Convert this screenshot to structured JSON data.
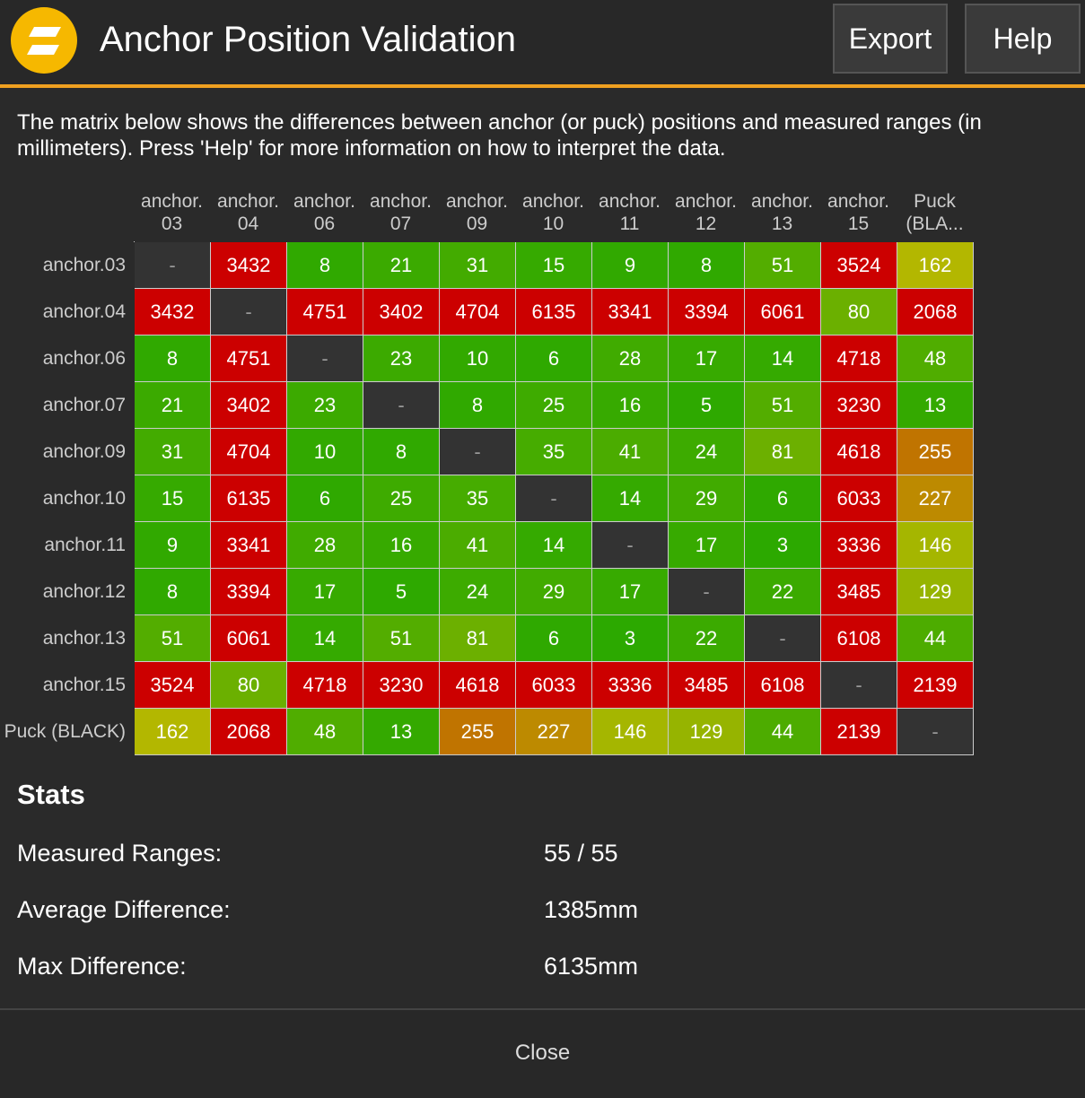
{
  "header": {
    "title": "Anchor Position Validation",
    "export_label": "Export",
    "help_label": "Help",
    "logo_color": "#f6b800",
    "accent": "#f0a020"
  },
  "description": "The matrix below shows the differences between anchor (or puck) positions and measured ranges (in millimeters). Press 'Help' for more information on how to interpret the data.",
  "matrix": {
    "col_headers": [
      [
        "anchor.",
        "03"
      ],
      [
        "anchor.",
        "04"
      ],
      [
        "anchor.",
        "06"
      ],
      [
        "anchor.",
        "07"
      ],
      [
        "anchor.",
        "09"
      ],
      [
        "anchor.",
        "10"
      ],
      [
        "anchor.",
        "11"
      ],
      [
        "anchor.",
        "12"
      ],
      [
        "anchor.",
        "13"
      ],
      [
        "anchor.",
        "15"
      ],
      [
        "Puck",
        "(BLA..."
      ]
    ],
    "row_headers": [
      "anchor.03",
      "anchor.04",
      "anchor.06",
      "anchor.07",
      "anchor.09",
      "anchor.10",
      "anchor.11",
      "anchor.12",
      "anchor.13",
      "anchor.15",
      "Puck (BLACK)"
    ],
    "rows": [
      [
        "-",
        "3432",
        "8",
        "21",
        "31",
        "15",
        "9",
        "8",
        "51",
        "3524",
        "162"
      ],
      [
        "3432",
        "-",
        "4751",
        "3402",
        "4704",
        "6135",
        "3341",
        "3394",
        "6061",
        "80",
        "2068"
      ],
      [
        "8",
        "4751",
        "-",
        "23",
        "10",
        "6",
        "28",
        "17",
        "14",
        "4718",
        "48"
      ],
      [
        "21",
        "3402",
        "23",
        "-",
        "8",
        "25",
        "16",
        "5",
        "51",
        "3230",
        "13"
      ],
      [
        "31",
        "4704",
        "10",
        "8",
        "-",
        "35",
        "41",
        "24",
        "81",
        "4618",
        "255"
      ],
      [
        "15",
        "6135",
        "6",
        "25",
        "35",
        "-",
        "14",
        "29",
        "6",
        "6033",
        "227"
      ],
      [
        "9",
        "3341",
        "28",
        "16",
        "41",
        "14",
        "-",
        "17",
        "3",
        "3336",
        "146"
      ],
      [
        "8",
        "3394",
        "17",
        "5",
        "24",
        "29",
        "17",
        "-",
        "22",
        "3485",
        "129"
      ],
      [
        "51",
        "6061",
        "14",
        "51",
        "81",
        "6",
        "3",
        "22",
        "-",
        "6108",
        "44"
      ],
      [
        "3524",
        "80",
        "4718",
        "3230",
        "4618",
        "6033",
        "3336",
        "3485",
        "6108",
        "-",
        "2139"
      ],
      [
        "162",
        "2068",
        "48",
        "13",
        "255",
        "227",
        "146",
        "129",
        "44",
        "2139",
        "-"
      ]
    ]
  },
  "stats": {
    "title": "Stats",
    "items": [
      {
        "label": "Measured Ranges:",
        "value": "55 / 55"
      },
      {
        "label": "Average Difference:",
        "value": "1385mm"
      },
      {
        "label": "Max Difference:",
        "value": "6135mm"
      }
    ]
  },
  "footer": {
    "close_label": "Close"
  }
}
